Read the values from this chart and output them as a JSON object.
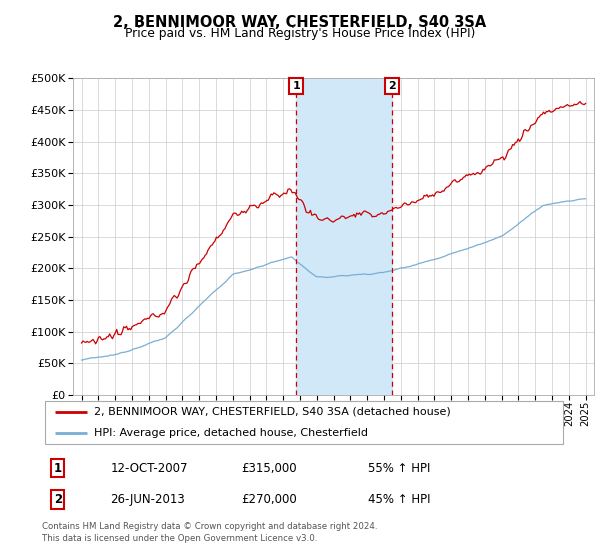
{
  "title": "2, BENNIMOOR WAY, CHESTERFIELD, S40 3SA",
  "subtitle": "Price paid vs. HM Land Registry's House Price Index (HPI)",
  "footer": "Contains HM Land Registry data © Crown copyright and database right 2024.\nThis data is licensed under the Open Government Licence v3.0.",
  "legend_line1": "2, BENNIMOOR WAY, CHESTERFIELD, S40 3SA (detached house)",
  "legend_line2": "HPI: Average price, detached house, Chesterfield",
  "sale1_label": "1",
  "sale1_date": "12-OCT-2007",
  "sale1_price": "£315,000",
  "sale1_hpi": "55% ↑ HPI",
  "sale1_year": 2007.79,
  "sale2_label": "2",
  "sale2_date": "26-JUN-2013",
  "sale2_price": "£270,000",
  "sale2_hpi": "45% ↑ HPI",
  "sale2_year": 2013.49,
  "ylim": [
    0,
    500000
  ],
  "yticks": [
    0,
    50000,
    100000,
    150000,
    200000,
    250000,
    300000,
    350000,
    400000,
    450000,
    500000
  ],
  "xlim": [
    1994.5,
    2025.5
  ],
  "red_color": "#cc0000",
  "blue_color": "#7aaed4",
  "shade_color": "#d0e8f7",
  "bg_color": "#ffffff",
  "grid_color": "#cccccc"
}
